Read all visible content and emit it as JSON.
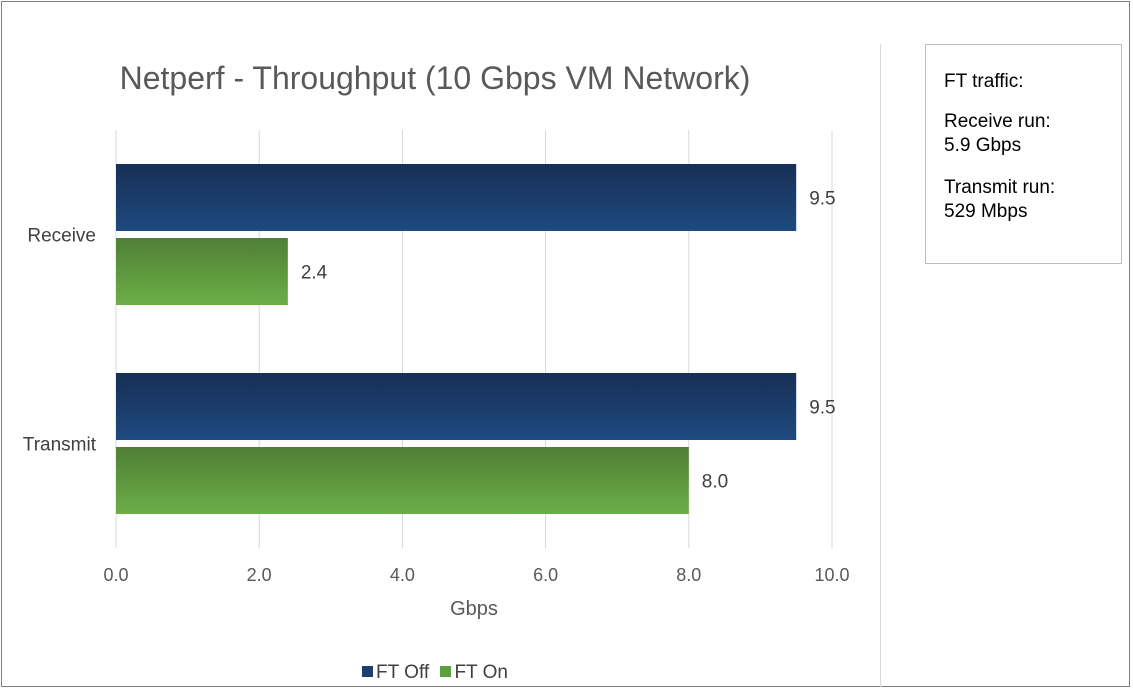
{
  "chart_data": {
    "type": "bar",
    "orientation": "horizontal",
    "title": "Netperf - Throughput (10 Gbps VM Network)",
    "xlabel": "Gbps",
    "ylabel": "",
    "categories": [
      "Receive",
      "Transmit"
    ],
    "series": [
      {
        "name": "FT Off",
        "values": [
          9.5,
          9.5
        ],
        "labels": [
          "9.5",
          "9.5"
        ],
        "color": "#1f3f6e"
      },
      {
        "name": "FT On",
        "values": [
          2.4,
          8.0
        ],
        "labels": [
          "2.4",
          "8.0"
        ],
        "color": "#5e9e3c"
      }
    ],
    "xlim": [
      0,
      10
    ],
    "xticks": [
      "0.0",
      "2.0",
      "4.0",
      "6.0",
      "8.0",
      "10.0"
    ],
    "grid": "vertical",
    "legend_position": "bottom"
  },
  "notes": {
    "heading": "FT traffic:",
    "receive_label": "Receive run:",
    "receive_value": "5.9 Gbps",
    "transmit_label": "Transmit run:",
    "transmit_value": "529 Mbps"
  }
}
